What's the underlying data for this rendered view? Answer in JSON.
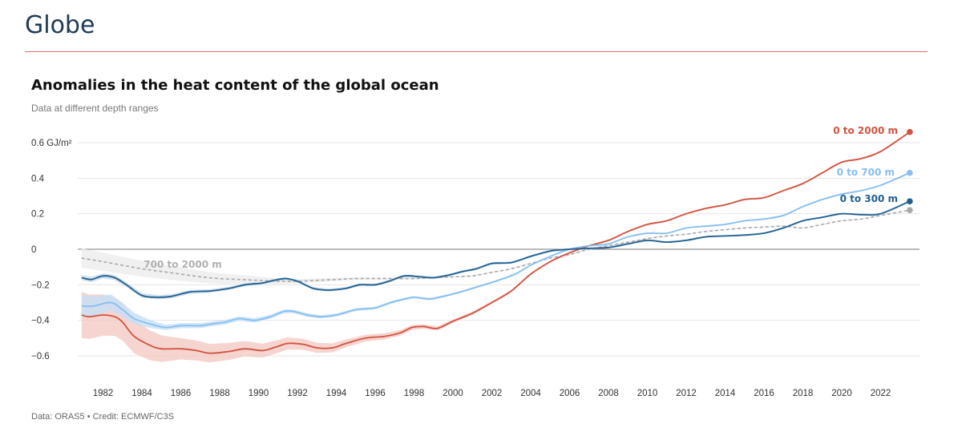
{
  "page": {
    "title": "Globe"
  },
  "footer": {
    "text": "Data: ORAS5 • Credit: ECMWF/C3S"
  },
  "chart_data": {
    "type": "line",
    "title": "Anomalies in the heat content of the global ocean",
    "subtitle": "Data at different depth ranges",
    "ylabel_unit": "GJ/m²",
    "ylim": [
      -0.7,
      0.68
    ],
    "xlim": [
      1980.7,
      2024.0
    ],
    "y_ticks": [
      {
        "value": 0.6,
        "label": "0.6 GJ/m²"
      },
      {
        "value": 0.4,
        "label": "0.4"
      },
      {
        "value": 0.2,
        "label": "0.2"
      },
      {
        "value": 0,
        "label": "0"
      },
      {
        "value": -0.2,
        "label": "−0.2"
      },
      {
        "value": -0.4,
        "label": "−0.4"
      },
      {
        "value": -0.6,
        "label": "−0.6"
      }
    ],
    "x_ticks": [
      {
        "value": 1982,
        "label": "1982"
      },
      {
        "value": 1984,
        "label": "1984"
      },
      {
        "value": 1986,
        "label": "1986"
      },
      {
        "value": 1988,
        "label": "1988"
      },
      {
        "value": 1990,
        "label": "1990"
      },
      {
        "value": 1992,
        "label": "1992"
      },
      {
        "value": 1994,
        "label": "1994"
      },
      {
        "value": 1996,
        "label": "1996"
      },
      {
        "value": 1998,
        "label": "1998"
      },
      {
        "value": 2000,
        "label": "2000"
      },
      {
        "value": 2002,
        "label": "2002"
      },
      {
        "value": 2004,
        "label": "2004"
      },
      {
        "value": 2006,
        "label": "2006"
      },
      {
        "value": 2008,
        "label": "2008"
      },
      {
        "value": 2010,
        "label": "2010"
      },
      {
        "value": 2012,
        "label": "2012"
      },
      {
        "value": 2014,
        "label": "2014"
      },
      {
        "value": 2016,
        "label": "2016"
      },
      {
        "value": 2018,
        "label": "2018"
      },
      {
        "value": 2020,
        "label": "2020"
      },
      {
        "value": 2022,
        "label": "2022"
      }
    ],
    "series": [
      {
        "name": "0 to 2000 m",
        "color": "#d0533f",
        "band_color": "#f4c9c3",
        "band_halfwidth": [
          [
            1980.9,
            0.13
          ],
          [
            1984,
            0.09
          ],
          [
            1986,
            0.06
          ],
          [
            1990,
            0.04
          ],
          [
            1995,
            0.02
          ],
          [
            2000,
            0.01
          ],
          [
            2004,
            0.005
          ],
          [
            2023.5,
            0.005
          ]
        ],
        "end_marker": true,
        "points": [
          [
            1980.9,
            -0.37
          ],
          [
            1981.3,
            -0.38
          ],
          [
            1982.0,
            -0.37
          ],
          [
            1982.6,
            -0.38
          ],
          [
            1983.0,
            -0.41
          ],
          [
            1983.6,
            -0.49
          ],
          [
            1984.4,
            -0.54
          ],
          [
            1985.0,
            -0.56
          ],
          [
            1986.0,
            -0.56
          ],
          [
            1986.8,
            -0.57
          ],
          [
            1987.5,
            -0.585
          ],
          [
            1988.5,
            -0.575
          ],
          [
            1989.3,
            -0.56
          ],
          [
            1990.2,
            -0.57
          ],
          [
            1990.9,
            -0.55
          ],
          [
            1991.5,
            -0.53
          ],
          [
            1992.3,
            -0.535
          ],
          [
            1993.0,
            -0.555
          ],
          [
            1993.8,
            -0.555
          ],
          [
            1994.5,
            -0.53
          ],
          [
            1995.5,
            -0.5
          ],
          [
            1996.5,
            -0.49
          ],
          [
            1997.3,
            -0.47
          ],
          [
            1997.9,
            -0.44
          ],
          [
            1998.5,
            -0.435
          ],
          [
            1999.2,
            -0.445
          ],
          [
            2000.0,
            -0.405
          ],
          [
            2001.0,
            -0.36
          ],
          [
            2002.0,
            -0.3
          ],
          [
            2003.0,
            -0.235
          ],
          [
            2004.0,
            -0.14
          ],
          [
            2005.0,
            -0.07
          ],
          [
            2006.0,
            -0.02
          ],
          [
            2007.0,
            0.02
          ],
          [
            2008.0,
            0.05
          ],
          [
            2009.0,
            0.1
          ],
          [
            2010.0,
            0.14
          ],
          [
            2011.0,
            0.16
          ],
          [
            2012.0,
            0.2
          ],
          [
            2013.0,
            0.23
          ],
          [
            2014.0,
            0.25
          ],
          [
            2015.0,
            0.28
          ],
          [
            2016.0,
            0.29
          ],
          [
            2017.0,
            0.33
          ],
          [
            2018.0,
            0.37
          ],
          [
            2019.0,
            0.43
          ],
          [
            2020.0,
            0.49
          ],
          [
            2021.0,
            0.51
          ],
          [
            2022.0,
            0.55
          ],
          [
            2023.5,
            0.66
          ]
        ]
      },
      {
        "name": "0 to 700 m",
        "color": "#86bff0",
        "band_color": "#c5def6",
        "band_halfwidth": [
          [
            1980.9,
            0.06
          ],
          [
            1983,
            0.04
          ],
          [
            1985,
            0.015
          ],
          [
            1990,
            0.012
          ],
          [
            1995,
            0.008
          ],
          [
            2000,
            0.006
          ],
          [
            2005,
            0.004
          ],
          [
            2023.5,
            0.004
          ]
        ],
        "end_marker": true,
        "points": [
          [
            1980.9,
            -0.32
          ],
          [
            1981.5,
            -0.32
          ],
          [
            1982.4,
            -0.3
          ],
          [
            1983.0,
            -0.34
          ],
          [
            1983.6,
            -0.39
          ],
          [
            1984.4,
            -0.42
          ],
          [
            1985.2,
            -0.44
          ],
          [
            1986.0,
            -0.43
          ],
          [
            1987.0,
            -0.43
          ],
          [
            1987.6,
            -0.42
          ],
          [
            1988.3,
            -0.41
          ],
          [
            1989.0,
            -0.39
          ],
          [
            1989.8,
            -0.4
          ],
          [
            1990.6,
            -0.38
          ],
          [
            1991.3,
            -0.35
          ],
          [
            1991.8,
            -0.35
          ],
          [
            1992.5,
            -0.37
          ],
          [
            1993.2,
            -0.38
          ],
          [
            1994.0,
            -0.37
          ],
          [
            1995.0,
            -0.34
          ],
          [
            1996.0,
            -0.33
          ],
          [
            1996.8,
            -0.3
          ],
          [
            1997.5,
            -0.28
          ],
          [
            1998.0,
            -0.27
          ],
          [
            1998.8,
            -0.28
          ],
          [
            1999.5,
            -0.265
          ],
          [
            2000.4,
            -0.24
          ],
          [
            2001.3,
            -0.21
          ],
          [
            2002.2,
            -0.18
          ],
          [
            2003.2,
            -0.14
          ],
          [
            2004.0,
            -0.09
          ],
          [
            2005.0,
            -0.04
          ],
          [
            2006.0,
            0.0
          ],
          [
            2007.0,
            0.02
          ],
          [
            2008.0,
            0.03
          ],
          [
            2009.0,
            0.07
          ],
          [
            2010.0,
            0.09
          ],
          [
            2011.0,
            0.09
          ],
          [
            2012.0,
            0.12
          ],
          [
            2013.0,
            0.13
          ],
          [
            2014.0,
            0.14
          ],
          [
            2015.0,
            0.16
          ],
          [
            2016.0,
            0.17
          ],
          [
            2017.0,
            0.19
          ],
          [
            2018.0,
            0.24
          ],
          [
            2019.0,
            0.28
          ],
          [
            2020.0,
            0.31
          ],
          [
            2021.0,
            0.33
          ],
          [
            2022.0,
            0.36
          ],
          [
            2023.5,
            0.43
          ]
        ]
      },
      {
        "name": "0 to 300 m",
        "color": "#1f5f91",
        "band_color": "#c5d8e8",
        "band_halfwidth": [
          [
            1980.9,
            0.015
          ],
          [
            1990,
            0.008
          ],
          [
            2023.5,
            0.004
          ]
        ],
        "end_marker": true,
        "points": [
          [
            1980.9,
            -0.16
          ],
          [
            1981.4,
            -0.17
          ],
          [
            1982.0,
            -0.15
          ],
          [
            1982.6,
            -0.16
          ],
          [
            1983.2,
            -0.2
          ],
          [
            1984.0,
            -0.26
          ],
          [
            1984.8,
            -0.27
          ],
          [
            1985.5,
            -0.265
          ],
          [
            1986.5,
            -0.24
          ],
          [
            1987.5,
            -0.235
          ],
          [
            1988.5,
            -0.22
          ],
          [
            1989.3,
            -0.2
          ],
          [
            1990.2,
            -0.19
          ],
          [
            1990.8,
            -0.175
          ],
          [
            1991.4,
            -0.165
          ],
          [
            1992.0,
            -0.18
          ],
          [
            1992.8,
            -0.22
          ],
          [
            1993.6,
            -0.23
          ],
          [
            1994.5,
            -0.22
          ],
          [
            1995.2,
            -0.2
          ],
          [
            1996.0,
            -0.2
          ],
          [
            1996.7,
            -0.18
          ],
          [
            1997.5,
            -0.15
          ],
          [
            1998.3,
            -0.155
          ],
          [
            1999.0,
            -0.16
          ],
          [
            1999.8,
            -0.145
          ],
          [
            2000.5,
            -0.125
          ],
          [
            2001.2,
            -0.11
          ],
          [
            2002.0,
            -0.08
          ],
          [
            2003.0,
            -0.075
          ],
          [
            2004.0,
            -0.04
          ],
          [
            2005.0,
            -0.01
          ],
          [
            2006.0,
            0.0
          ],
          [
            2007.0,
            0.005
          ],
          [
            2008.0,
            0.01
          ],
          [
            2009.0,
            0.03
          ],
          [
            2010.0,
            0.05
          ],
          [
            2011.0,
            0.04
          ],
          [
            2012.0,
            0.05
          ],
          [
            2013.0,
            0.07
          ],
          [
            2014.0,
            0.075
          ],
          [
            2015.0,
            0.08
          ],
          [
            2016.0,
            0.09
          ],
          [
            2017.0,
            0.12
          ],
          [
            2018.0,
            0.16
          ],
          [
            2019.0,
            0.18
          ],
          [
            2020.0,
            0.2
          ],
          [
            2021.0,
            0.195
          ],
          [
            2022.0,
            0.2
          ],
          [
            2023.5,
            0.27
          ]
        ]
      },
      {
        "name": "700 to 2000 m",
        "color": "#a8a8a8",
        "dashed": true,
        "band_color": "#ececec",
        "band_halfwidth": [
          [
            1980.9,
            0.055
          ],
          [
            1984,
            0.045
          ],
          [
            1988,
            0.03
          ],
          [
            1992,
            0.012
          ],
          [
            1996,
            0.006
          ],
          [
            2000,
            0.004
          ],
          [
            2023.5,
            0.003
          ]
        ],
        "end_marker": true,
        "points": [
          [
            1980.9,
            -0.05
          ],
          [
            1982.0,
            -0.07
          ],
          [
            1983.0,
            -0.09
          ],
          [
            1984.0,
            -0.11
          ],
          [
            1985.0,
            -0.125
          ],
          [
            1986.0,
            -0.14
          ],
          [
            1987.0,
            -0.155
          ],
          [
            1988.0,
            -0.165
          ],
          [
            1989.0,
            -0.17
          ],
          [
            1990.0,
            -0.175
          ],
          [
            1991.0,
            -0.18
          ],
          [
            1992.0,
            -0.18
          ],
          [
            1993.0,
            -0.175
          ],
          [
            1994.0,
            -0.17
          ],
          [
            1995.0,
            -0.165
          ],
          [
            1996.0,
            -0.165
          ],
          [
            1997.0,
            -0.165
          ],
          [
            1998.0,
            -0.165
          ],
          [
            1999.0,
            -0.16
          ],
          [
            2000.0,
            -0.155
          ],
          [
            2001.0,
            -0.15
          ],
          [
            2002.0,
            -0.13
          ],
          [
            2003.0,
            -0.11
          ],
          [
            2004.0,
            -0.08
          ],
          [
            2005.0,
            -0.05
          ],
          [
            2006.0,
            -0.03
          ],
          [
            2007.0,
            0.0
          ],
          [
            2008.0,
            0.02
          ],
          [
            2009.0,
            0.04
          ],
          [
            2010.0,
            0.06
          ],
          [
            2011.0,
            0.075
          ],
          [
            2012.0,
            0.085
          ],
          [
            2013.0,
            0.1
          ],
          [
            2014.0,
            0.11
          ],
          [
            2015.0,
            0.12
          ],
          [
            2016.0,
            0.125
          ],
          [
            2017.0,
            0.13
          ],
          [
            2018.0,
            0.12
          ],
          [
            2019.0,
            0.14
          ],
          [
            2020.0,
            0.16
          ],
          [
            2021.0,
            0.17
          ],
          [
            2022.0,
            0.19
          ],
          [
            2023.5,
            0.22
          ]
        ]
      }
    ],
    "annotations": [
      {
        "series": "0 to 2000 m",
        "text": "0 to 2000 m"
      },
      {
        "series": "0 to 700 m",
        "text": "0 to 700 m"
      },
      {
        "series": "0 to 300 m",
        "text": "0 to 300 m"
      },
      {
        "series": "700 to 2000 m",
        "text": "700 to 2000 m"
      }
    ]
  }
}
